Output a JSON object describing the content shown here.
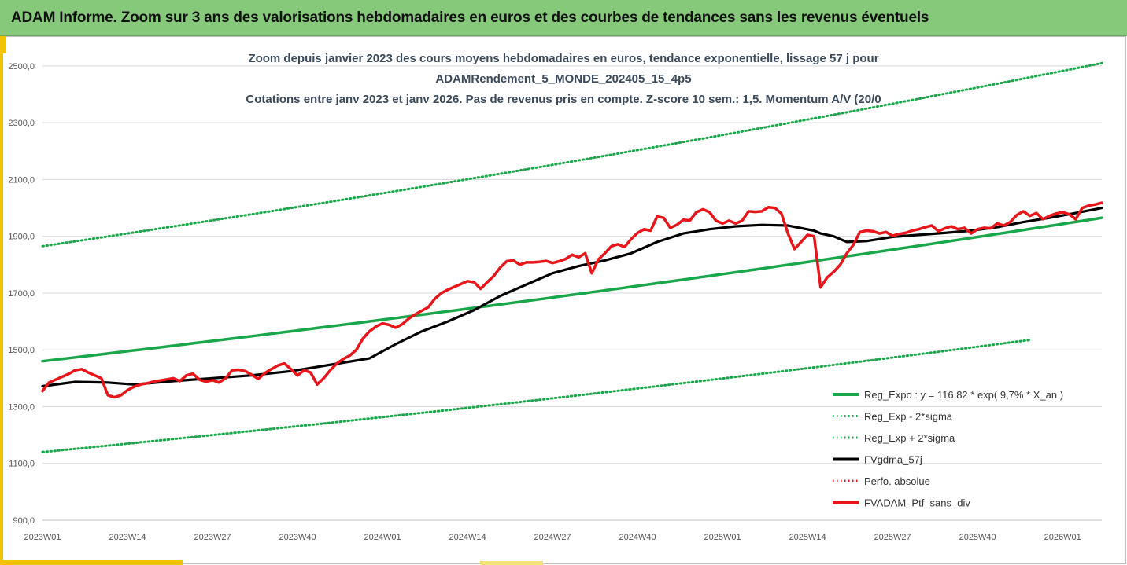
{
  "header": {
    "title": "ADAM Informe. Zoom sur 3 ans des valorisations hebdomadaires en euros et des courbes de tendances sans les revenus éventuels"
  },
  "chart_data": {
    "type": "line",
    "title_lines": [
      "Zoom depuis janvier 2023 des cours moyens hebdomadaires  en euros, tendance exponentielle, lissage 57 j pour",
      "ADAMRendement_5_MONDE_202405_15_4p5",
      "Cotations entre janv 2023 et janv 2026. Pas de revenus pris en compte. Z-score 10 sem.: 1,5. Momentum A/V (20/0"
    ],
    "x_tick_labels": [
      "2023W01",
      "2023W14",
      "2023W27",
      "2023W40",
      "2024W01",
      "2024W14",
      "2024W27",
      "2024W40",
      "2025W01",
      "2025W14",
      "2025W27",
      "2025W40",
      "2026W01"
    ],
    "x_range_weeks": [
      0,
      162
    ],
    "y_tick_labels": [
      "900,0",
      "1100,0",
      "1300,0",
      "1500,0",
      "1700,0",
      "1900,0",
      "2100,0",
      "2300,0",
      "2500,0"
    ],
    "ylim": [
      900,
      2580
    ],
    "grid": "horizontal",
    "legend_position": "bottom-right",
    "colors": {
      "green": "#1aa64a",
      "black": "#000000",
      "red": "#e8151b",
      "grid": "#d9d9d9"
    },
    "series": [
      {
        "name": "Reg_Expo : y = 116,82 * exp( 9,7% *  X_an )",
        "style": "solid",
        "color": "#1aa64a",
        "x": [
          0,
          162
        ],
        "values": [
          1460,
          1965
        ],
        "curve": "exp"
      },
      {
        "name": "Reg_Exp - 2*sigma",
        "style": "dotted",
        "color": "#1aa64a",
        "x": [
          0,
          151
        ],
        "values": [
          1140,
          1535
        ],
        "curve": "exp"
      },
      {
        "name": "Reg_Exp + 2*sigma",
        "style": "dotted",
        "color": "#1aa64a",
        "x": [
          0,
          162
        ],
        "values": [
          1865,
          2510
        ],
        "curve": "exp"
      },
      {
        "name": "FVgdma_57j",
        "style": "solid",
        "color": "#000000",
        "x": [
          0,
          5,
          10,
          14,
          20,
          26,
          32,
          38,
          42,
          46,
          50,
          54,
          58,
          62,
          66,
          70,
          74,
          78,
          82,
          86,
          90,
          94,
          98,
          102,
          106,
          110,
          114,
          118,
          119,
          121,
          123,
          126,
          130,
          134,
          138,
          142,
          146,
          150,
          154,
          158,
          162
        ],
        "values": [
          1372,
          1387,
          1385,
          1378,
          1390,
          1400,
          1410,
          1425,
          1440,
          1455,
          1470,
          1520,
          1565,
          1600,
          1640,
          1690,
          1730,
          1770,
          1795,
          1815,
          1840,
          1880,
          1910,
          1925,
          1935,
          1940,
          1938,
          1920,
          1910,
          1900,
          1880,
          1883,
          1898,
          1905,
          1912,
          1920,
          1932,
          1950,
          1965,
          1982,
          2000
        ]
      },
      {
        "name": "Perfo. absolue",
        "style": "dotted",
        "color": "#e8151b",
        "x": [],
        "values": []
      },
      {
        "name": "FVADAM_Ptf_sans_div",
        "style": "solid",
        "color": "#e8151b",
        "x": [
          0,
          1,
          2,
          3,
          4,
          5,
          6,
          7,
          8,
          9,
          10,
          11,
          12,
          13,
          14,
          15,
          16,
          17,
          18,
          19,
          20,
          21,
          22,
          23,
          24,
          25,
          26,
          27,
          28,
          29,
          30,
          31,
          32,
          33,
          34,
          35,
          36,
          37,
          38,
          39,
          40,
          41,
          42,
          43,
          44,
          45,
          46,
          47,
          48,
          49,
          50,
          51,
          52,
          53,
          54,
          55,
          56,
          57,
          58,
          59,
          60,
          61,
          62,
          63,
          64,
          65,
          66,
          67,
          68,
          69,
          70,
          71,
          72,
          73,
          74,
          75,
          76,
          77,
          78,
          79,
          80,
          81,
          82,
          83,
          84,
          85,
          86,
          87,
          88,
          89,
          90,
          91,
          92,
          93,
          94,
          95,
          96,
          97,
          98,
          99,
          100,
          101,
          102,
          103,
          104,
          105,
          106,
          107,
          108,
          109,
          110,
          111,
          112,
          113,
          114,
          115,
          116,
          117,
          118,
          119,
          120,
          121,
          122,
          123,
          124,
          125,
          126,
          127,
          128,
          129,
          130,
          131,
          132,
          133,
          134,
          135,
          136,
          137,
          138,
          139,
          140,
          141,
          142,
          143,
          144,
          145,
          146,
          147,
          148,
          149,
          150,
          151,
          152,
          153,
          154,
          155,
          156,
          157,
          158,
          159,
          160,
          161,
          162
        ],
        "values": [
          1355,
          1385,
          1395,
          1405,
          1415,
          1428,
          1432,
          1420,
          1410,
          1400,
          1340,
          1333,
          1340,
          1358,
          1370,
          1378,
          1382,
          1388,
          1392,
          1396,
          1400,
          1390,
          1410,
          1416,
          1395,
          1388,
          1393,
          1385,
          1400,
          1428,
          1430,
          1425,
          1412,
          1398,
          1418,
          1432,
          1445,
          1452,
          1432,
          1410,
          1428,
          1420,
          1378,
          1400,
          1428,
          1452,
          1468,
          1480,
          1500,
          1540,
          1565,
          1582,
          1593,
          1588,
          1578,
          1590,
          1610,
          1625,
          1638,
          1650,
          1680,
          1700,
          1712,
          1722,
          1732,
          1742,
          1738,
          1715,
          1738,
          1760,
          1790,
          1812,
          1815,
          1800,
          1808,
          1808,
          1810,
          1813,
          1806,
          1812,
          1820,
          1835,
          1826,
          1840,
          1770,
          1818,
          1840,
          1865,
          1872,
          1862,
          1890,
          1912,
          1925,
          1920,
          1970,
          1965,
          1930,
          1940,
          1958,
          1956,
          1985,
          1995,
          1985,
          1955,
          1945,
          1955,
          1945,
          1955,
          1988,
          1986,
          1988,
          2002,
          2000,
          1980,
          1910,
          1855,
          1880,
          1905,
          1900,
          1720,
          1755,
          1775,
          1800,
          1840,
          1870,
          1915,
          1920,
          1918,
          1910,
          1915,
          1902,
          1908,
          1912,
          1920,
          1925,
          1932,
          1938,
          1918,
          1928,
          1935,
          1925,
          1930,
          1910,
          1925,
          1930,
          1928,
          1945,
          1938,
          1950,
          1975,
          1988,
          1972,
          1982,
          1960,
          1972,
          1980,
          1985,
          1978,
          1960,
          2000,
          2008,
          2012,
          2018
        ]
      }
    ]
  }
}
